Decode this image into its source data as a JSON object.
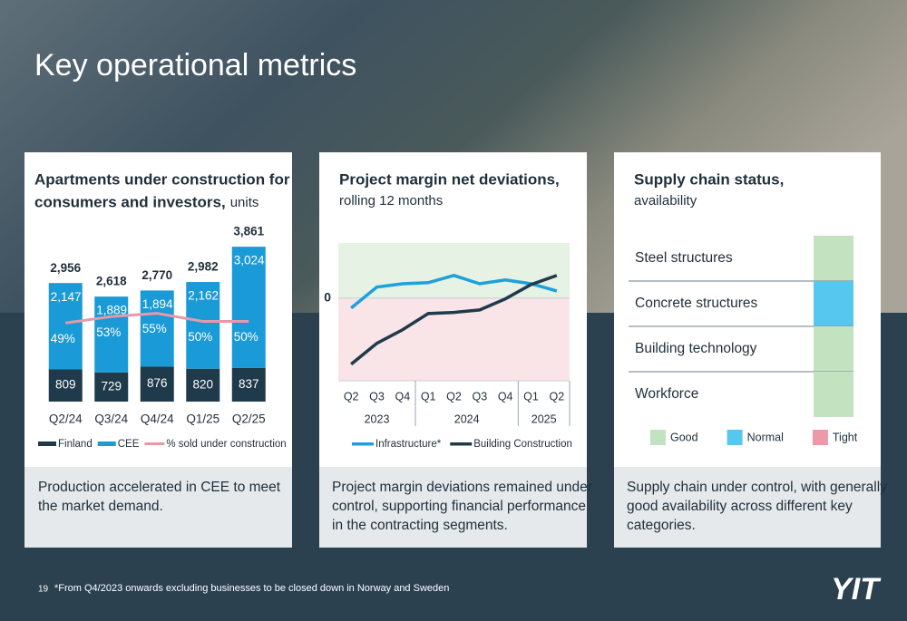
{
  "title": "Key operational metrics",
  "chart_data": [
    {
      "type": "stacked-bar",
      "title_lines": [
        "Apartments under construction for",
        "consumers and investors,"
      ],
      "unit": "units",
      "categories": [
        "Q2/24",
        "Q3/24",
        "Q4/24",
        "Q1/25",
        "Q2/25"
      ],
      "series": [
        {
          "name": "Finland",
          "color": "#1f3a4a",
          "values": [
            809,
            729,
            876,
            820,
            837
          ]
        },
        {
          "name": "CEE",
          "color": "#1a9ad6",
          "values": [
            2147,
            1889,
            1894,
            2162,
            3024
          ],
          "value_labels": [
            "2,147",
            "1,889",
            "1,894",
            "2,162",
            "3,024"
          ]
        },
        {
          "name": "% sold under construction",
          "color": "#e899a8",
          "axis": "y2",
          "kind": "line",
          "values": [
            49,
            53,
            55,
            50,
            50
          ],
          "value_labels": [
            "49%",
            "53%",
            "55%",
            "50%",
            "50%"
          ]
        }
      ],
      "totals": [
        2956,
        2618,
        2770,
        2982,
        3861
      ],
      "total_labels": [
        "2,956",
        "2,618",
        "2,770",
        "2,982",
        "3,861"
      ],
      "ylim": [
        0,
        4000
      ],
      "y2lim": [
        0,
        100
      ],
      "caption": [
        "Production accelerated in CEE to meet",
        "the market demand."
      ]
    },
    {
      "type": "line",
      "title": "Project margin net deviations,",
      "subtitle": "rolling 12 months",
      "categories": [
        "Q2",
        "Q3",
        "Q4",
        "Q1",
        "Q2",
        "Q3",
        "Q4",
        "Q1",
        "Q2"
      ],
      "years": [
        {
          "label": "2023",
          "span": 3
        },
        {
          "label": "2024",
          "span": 4
        },
        {
          "label": "2025",
          "span": 2
        }
      ],
      "series": [
        {
          "name": "Infrastructure*",
          "color": "#1ea0dc",
          "values": [
            -0.36,
            0.4,
            0.52,
            0.56,
            0.82,
            0.52,
            0.66,
            0.52,
            0.26
          ]
        },
        {
          "name": "Building Construction",
          "color": "#1f3a4a",
          "values": [
            -2.4,
            -1.64,
            -1.15,
            -0.56,
            -0.52,
            -0.43,
            -0.03,
            0.49,
            0.82
          ]
        }
      ],
      "ylim": [
        -3,
        2
      ],
      "yticks": [
        0
      ],
      "caption": [
        "Project margin deviations remained under",
        "control, supporting financial performance",
        "in the contracting segments."
      ]
    }
  ],
  "supply_chain": {
    "title": "Supply chain status,",
    "subtitle": "availability",
    "statuses": [
      {
        "name": "Good",
        "color": "#c3e3c0"
      },
      {
        "name": "Normal",
        "color": "#56c8f0"
      },
      {
        "name": "Tight",
        "color": "#eb9aa8"
      }
    ],
    "rows": [
      {
        "label": "Steel structures",
        "status": 0
      },
      {
        "label": "Concrete structures",
        "status": 1
      },
      {
        "label": "Building technology",
        "status": 0
      },
      {
        "label": "Workforce",
        "status": 0
      }
    ],
    "caption": [
      "Supply chain under control, with generally",
      "good availability across different key",
      "categories."
    ]
  },
  "footer": {
    "page": "19",
    "note": "*From Q4/2023 onwards excluding businesses to be closed down in Norway and Sweden",
    "logo": "YIT"
  }
}
